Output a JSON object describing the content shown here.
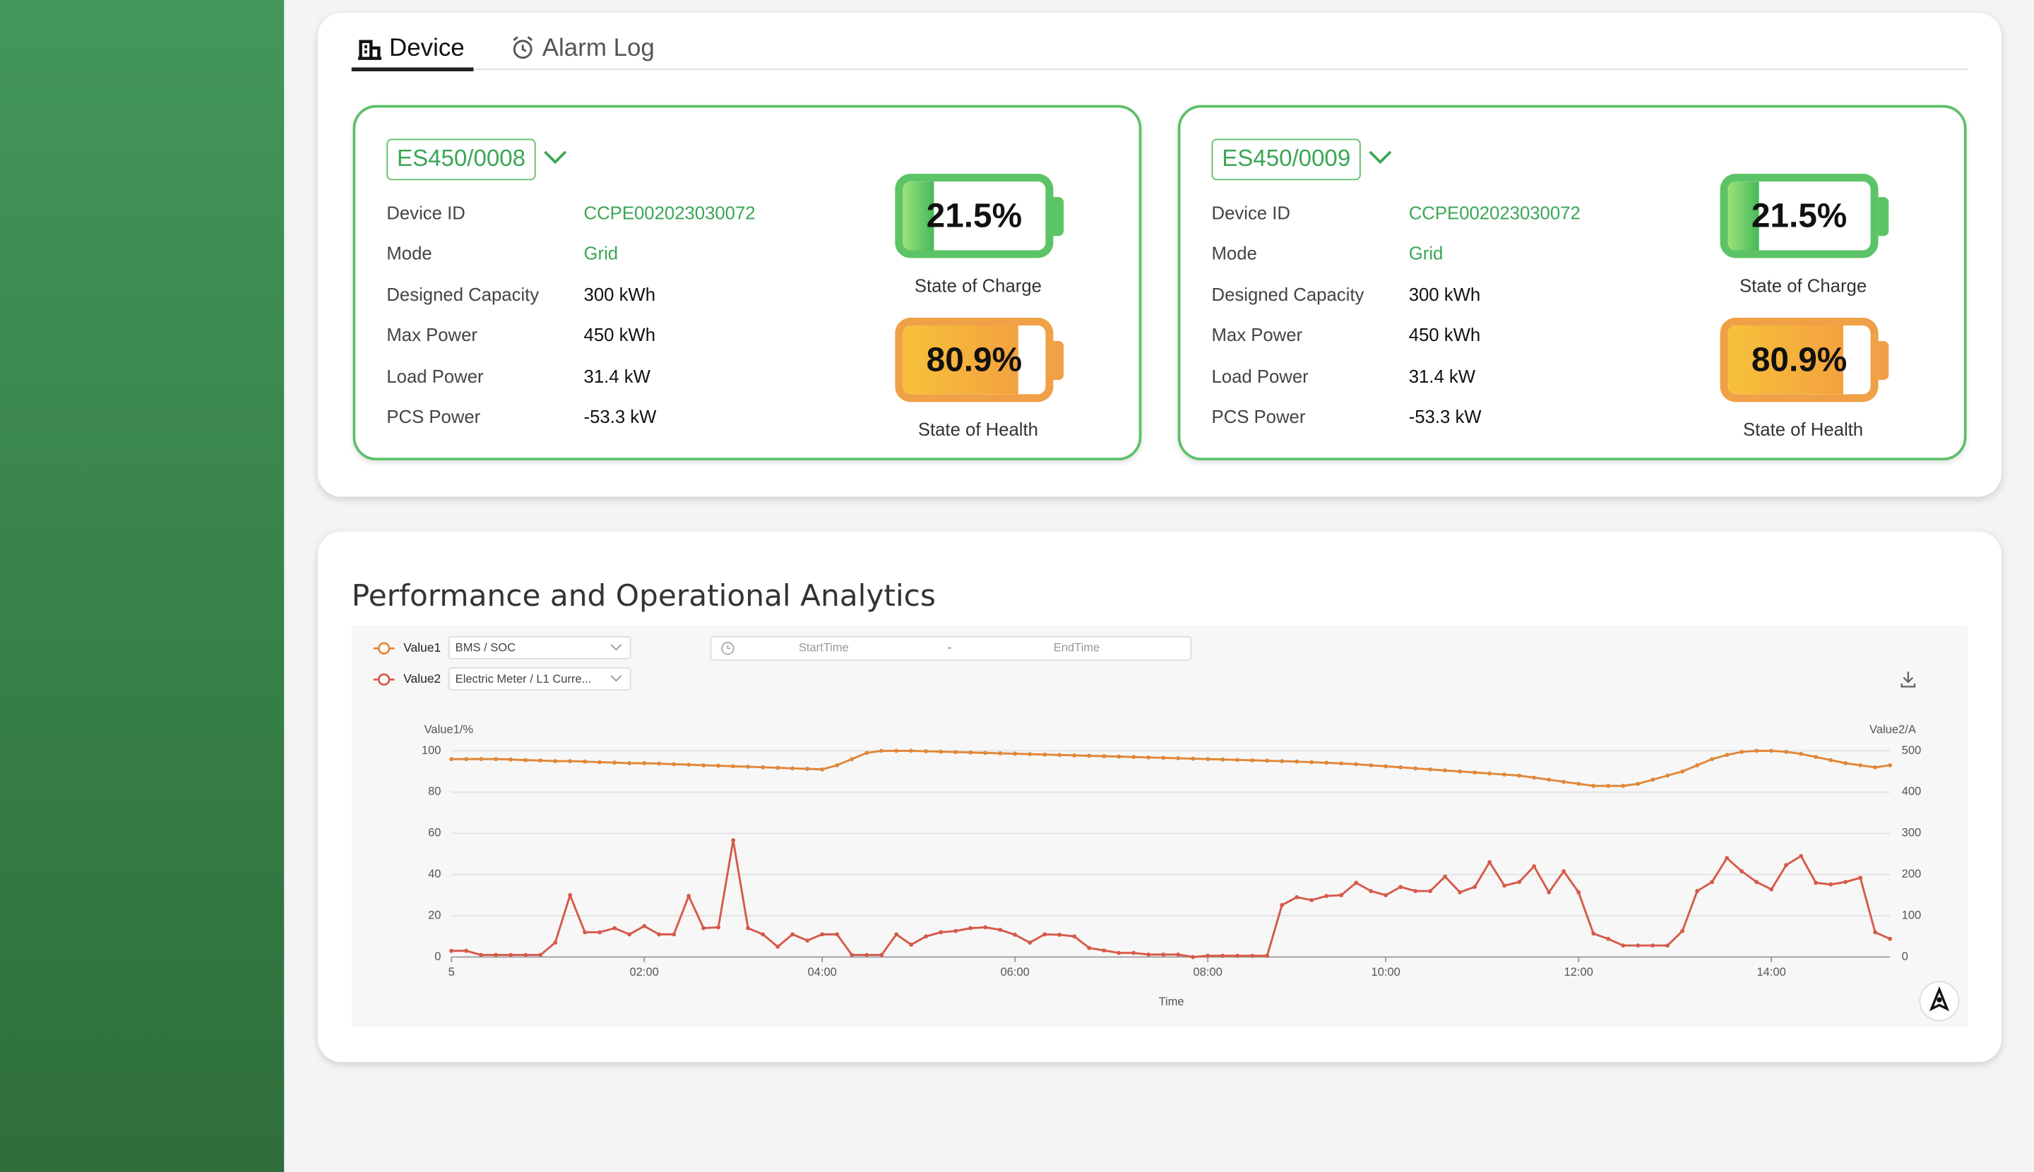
{
  "tabs": [
    "Device",
    "Alarm Log"
  ],
  "devices": [
    {
      "name": "ES450/0008",
      "fields": [
        {
          "label": "Device ID",
          "value": "CCPE002023030072"
        },
        {
          "label": "Mode",
          "value": "Grid"
        },
        {
          "label": "Designed Capacity",
          "value": "300 kWh"
        },
        {
          "label": "Max Power",
          "value": "450 kWh"
        },
        {
          "label": "Load Power",
          "value": "31.4 kW"
        },
        {
          "label": "PCS Power",
          "value": "-53.3 kW"
        }
      ],
      "soc": {
        "value": 21.5,
        "label": "21.5%",
        "caption": "State of Charge"
      },
      "soh": {
        "value": 80.9,
        "label": "80.9%",
        "caption": "State of Health"
      }
    },
    {
      "name": "ES450/0009",
      "fields": [
        {
          "label": "Device ID",
          "value": "CCPE002023030072"
        },
        {
          "label": "Mode",
          "value": "Grid"
        },
        {
          "label": "Designed Capacity",
          "value": "300 kWh"
        },
        {
          "label": "Max Power",
          "value": "450 kWh"
        },
        {
          "label": "Load Power",
          "value": "31.4 kW"
        },
        {
          "label": "PCS Power",
          "value": "-53.3 kW"
        }
      ],
      "soc": {
        "value": 21.5,
        "label": "21.5%",
        "caption": "State of Charge"
      },
      "soh": {
        "value": 80.9,
        "label": "80.9%",
        "caption": "State of Health"
      }
    }
  ],
  "analytics": {
    "title": "Performance and Operational Analytics",
    "selectors": [
      {
        "source": "BMS / SOC"
      },
      {
        "source": "Electric Meter / L1 Curre..."
      }
    ],
    "time_range": {
      "start": "StartTime",
      "separator": "-",
      "end": "EndTime"
    },
    "chart_data": {
      "type": "line",
      "xlabel": "Time",
      "ylabel": "Value1/%",
      "y2label": "Value2/A",
      "categories": [
        "5",
        null,
        null,
        null,
        null,
        null,
        null,
        null,
        null,
        null,
        null,
        null,
        null,
        "02:00",
        null,
        null,
        null,
        null,
        null,
        null,
        null,
        null,
        null,
        null,
        null,
        "04:00",
        null,
        null,
        null,
        null,
        null,
        null,
        null,
        null,
        null,
        null,
        null,
        null,
        "06:00",
        null,
        null,
        null,
        null,
        null,
        null,
        null,
        null,
        null,
        null,
        null,
        null,
        "08:00",
        null,
        null,
        null,
        null,
        null,
        null,
        null,
        null,
        null,
        null,
        null,
        "10:00",
        null,
        null,
        null,
        null,
        null,
        null,
        null,
        null,
        null,
        null,
        null,
        null,
        "12:00",
        null,
        null,
        null,
        null,
        null,
        null,
        null,
        null,
        null,
        null,
        null,
        null,
        "14:00",
        null,
        null,
        null,
        null,
        null,
        null,
        null,
        null
      ],
      "ylim": [
        0,
        100
      ],
      "yticks": [
        0,
        20,
        40,
        60,
        80,
        100
      ],
      "y2lim": [
        0,
        500
      ],
      "y2ticks": [
        0,
        100,
        200,
        300,
        400,
        500
      ],
      "grid": true,
      "series": [
        {
          "name": "Value1",
          "color": "#e0883a",
          "values": [
            96,
            96,
            96,
            96,
            95.8,
            95.5,
            95.3,
            95,
            95,
            94.8,
            94.5,
            94.3,
            94,
            94,
            93.8,
            93.5,
            93.3,
            93,
            92.8,
            92.5,
            92.3,
            92,
            91.8,
            91.5,
            91.3,
            91,
            93,
            96,
            99,
            100,
            100,
            100,
            99.8,
            99.6,
            99.4,
            99.2,
            99,
            98.8,
            98.6,
            98.4,
            98.2,
            98,
            97.8,
            97.6,
            97.4,
            97.2,
            97,
            96.8,
            96.6,
            96.4,
            96.2,
            96,
            95.8,
            95.6,
            95.4,
            95.2,
            95,
            94.8,
            94.5,
            94.2,
            93.9,
            93.5,
            93,
            92.5,
            92,
            91.5,
            91,
            90.5,
            90,
            89.5,
            89,
            88.5,
            88,
            87,
            86,
            85,
            84,
            83,
            83,
            83,
            84,
            86,
            88,
            90,
            93,
            96,
            98,
            99.5,
            100,
            100,
            99.5,
            98.5,
            97,
            95.5,
            94,
            93,
            92,
            93
          ]
        },
        {
          "name": "Value2",
          "color": "#d65a4a",
          "axis": "y2",
          "values": [
            15,
            15,
            5,
            5,
            5,
            5,
            5,
            35,
            150,
            60,
            60,
            70,
            55,
            75,
            55,
            55,
            148,
            70,
            72,
            283,
            70,
            55,
            25,
            55,
            40,
            55,
            55,
            5,
            5,
            5,
            55,
            30,
            50,
            60,
            63,
            70,
            72,
            66,
            54,
            35,
            55,
            54,
            50,
            22,
            16,
            10,
            10,
            6,
            6,
            6,
            0,
            3,
            3,
            3,
            3,
            3,
            126,
            145,
            138,
            148,
            150,
            180,
            160,
            150,
            170,
            160,
            160,
            195,
            157,
            170,
            230,
            173,
            182,
            220,
            157,
            208,
            157,
            57,
            44,
            28,
            28,
            28,
            28,
            63,
            160,
            182,
            240,
            208,
            182,
            164,
            223,
            245,
            180,
            176,
            182,
            192,
            60,
            44
          ]
        }
      ]
    }
  }
}
